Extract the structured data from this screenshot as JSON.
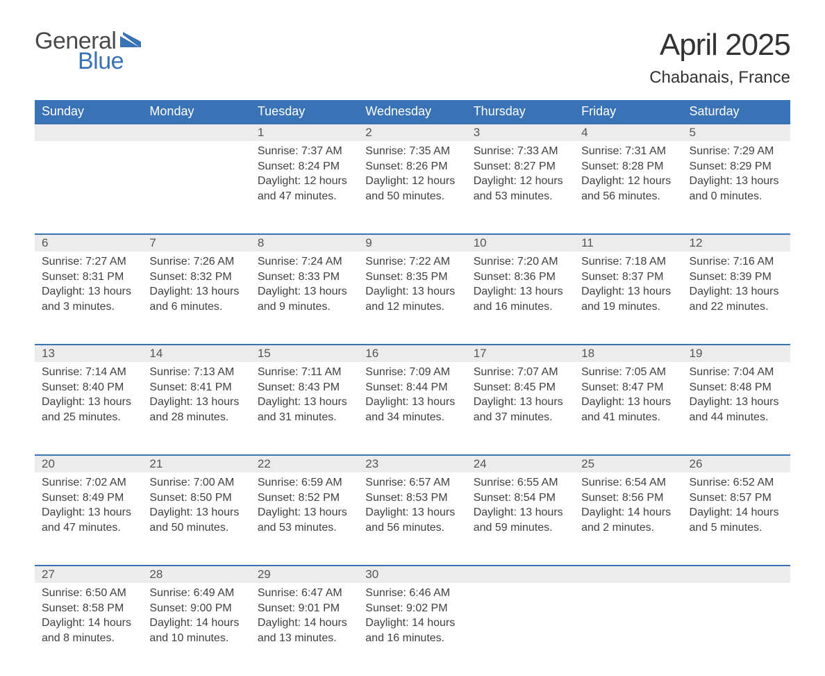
{
  "logo": {
    "word1": "General",
    "word2": "Blue",
    "triangle_color": "#3a73b5"
  },
  "title": "April 2025",
  "location": "Chabanais, France",
  "header_bg": "#3a73b5",
  "header_text_color": "#ffffff",
  "daynum_bg": "#ececec",
  "row_border_color": "#3a73b5",
  "text_color": "#404040",
  "days_of_week": [
    "Sunday",
    "Monday",
    "Tuesday",
    "Wednesday",
    "Thursday",
    "Friday",
    "Saturday"
  ],
  "weeks": [
    [
      null,
      null,
      {
        "n": "1",
        "sunrise": "7:37 AM",
        "sunset": "8:24 PM",
        "daylight": "12 hours and 47 minutes."
      },
      {
        "n": "2",
        "sunrise": "7:35 AM",
        "sunset": "8:26 PM",
        "daylight": "12 hours and 50 minutes."
      },
      {
        "n": "3",
        "sunrise": "7:33 AM",
        "sunset": "8:27 PM",
        "daylight": "12 hours and 53 minutes."
      },
      {
        "n": "4",
        "sunrise": "7:31 AM",
        "sunset": "8:28 PM",
        "daylight": "12 hours and 56 minutes."
      },
      {
        "n": "5",
        "sunrise": "7:29 AM",
        "sunset": "8:29 PM",
        "daylight": "13 hours and 0 minutes."
      }
    ],
    [
      {
        "n": "6",
        "sunrise": "7:27 AM",
        "sunset": "8:31 PM",
        "daylight": "13 hours and 3 minutes."
      },
      {
        "n": "7",
        "sunrise": "7:26 AM",
        "sunset": "8:32 PM",
        "daylight": "13 hours and 6 minutes."
      },
      {
        "n": "8",
        "sunrise": "7:24 AM",
        "sunset": "8:33 PM",
        "daylight": "13 hours and 9 minutes."
      },
      {
        "n": "9",
        "sunrise": "7:22 AM",
        "sunset": "8:35 PM",
        "daylight": "13 hours and 12 minutes."
      },
      {
        "n": "10",
        "sunrise": "7:20 AM",
        "sunset": "8:36 PM",
        "daylight": "13 hours and 16 minutes."
      },
      {
        "n": "11",
        "sunrise": "7:18 AM",
        "sunset": "8:37 PM",
        "daylight": "13 hours and 19 minutes."
      },
      {
        "n": "12",
        "sunrise": "7:16 AM",
        "sunset": "8:39 PM",
        "daylight": "13 hours and 22 minutes."
      }
    ],
    [
      {
        "n": "13",
        "sunrise": "7:14 AM",
        "sunset": "8:40 PM",
        "daylight": "13 hours and 25 minutes."
      },
      {
        "n": "14",
        "sunrise": "7:13 AM",
        "sunset": "8:41 PM",
        "daylight": "13 hours and 28 minutes."
      },
      {
        "n": "15",
        "sunrise": "7:11 AM",
        "sunset": "8:43 PM",
        "daylight": "13 hours and 31 minutes."
      },
      {
        "n": "16",
        "sunrise": "7:09 AM",
        "sunset": "8:44 PM",
        "daylight": "13 hours and 34 minutes."
      },
      {
        "n": "17",
        "sunrise": "7:07 AM",
        "sunset": "8:45 PM",
        "daylight": "13 hours and 37 minutes."
      },
      {
        "n": "18",
        "sunrise": "7:05 AM",
        "sunset": "8:47 PM",
        "daylight": "13 hours and 41 minutes."
      },
      {
        "n": "19",
        "sunrise": "7:04 AM",
        "sunset": "8:48 PM",
        "daylight": "13 hours and 44 minutes."
      }
    ],
    [
      {
        "n": "20",
        "sunrise": "7:02 AM",
        "sunset": "8:49 PM",
        "daylight": "13 hours and 47 minutes."
      },
      {
        "n": "21",
        "sunrise": "7:00 AM",
        "sunset": "8:50 PM",
        "daylight": "13 hours and 50 minutes."
      },
      {
        "n": "22",
        "sunrise": "6:59 AM",
        "sunset": "8:52 PM",
        "daylight": "13 hours and 53 minutes."
      },
      {
        "n": "23",
        "sunrise": "6:57 AM",
        "sunset": "8:53 PM",
        "daylight": "13 hours and 56 minutes."
      },
      {
        "n": "24",
        "sunrise": "6:55 AM",
        "sunset": "8:54 PM",
        "daylight": "13 hours and 59 minutes."
      },
      {
        "n": "25",
        "sunrise": "6:54 AM",
        "sunset": "8:56 PM",
        "daylight": "14 hours and 2 minutes."
      },
      {
        "n": "26",
        "sunrise": "6:52 AM",
        "sunset": "8:57 PM",
        "daylight": "14 hours and 5 minutes."
      }
    ],
    [
      {
        "n": "27",
        "sunrise": "6:50 AM",
        "sunset": "8:58 PM",
        "daylight": "14 hours and 8 minutes."
      },
      {
        "n": "28",
        "sunrise": "6:49 AM",
        "sunset": "9:00 PM",
        "daylight": "14 hours and 10 minutes."
      },
      {
        "n": "29",
        "sunrise": "6:47 AM",
        "sunset": "9:01 PM",
        "daylight": "14 hours and 13 minutes."
      },
      {
        "n": "30",
        "sunrise": "6:46 AM",
        "sunset": "9:02 PM",
        "daylight": "14 hours and 16 minutes."
      },
      null,
      null,
      null
    ]
  ],
  "labels": {
    "sunrise_prefix": "Sunrise: ",
    "sunset_prefix": "Sunset: ",
    "daylight_prefix": "Daylight: "
  }
}
